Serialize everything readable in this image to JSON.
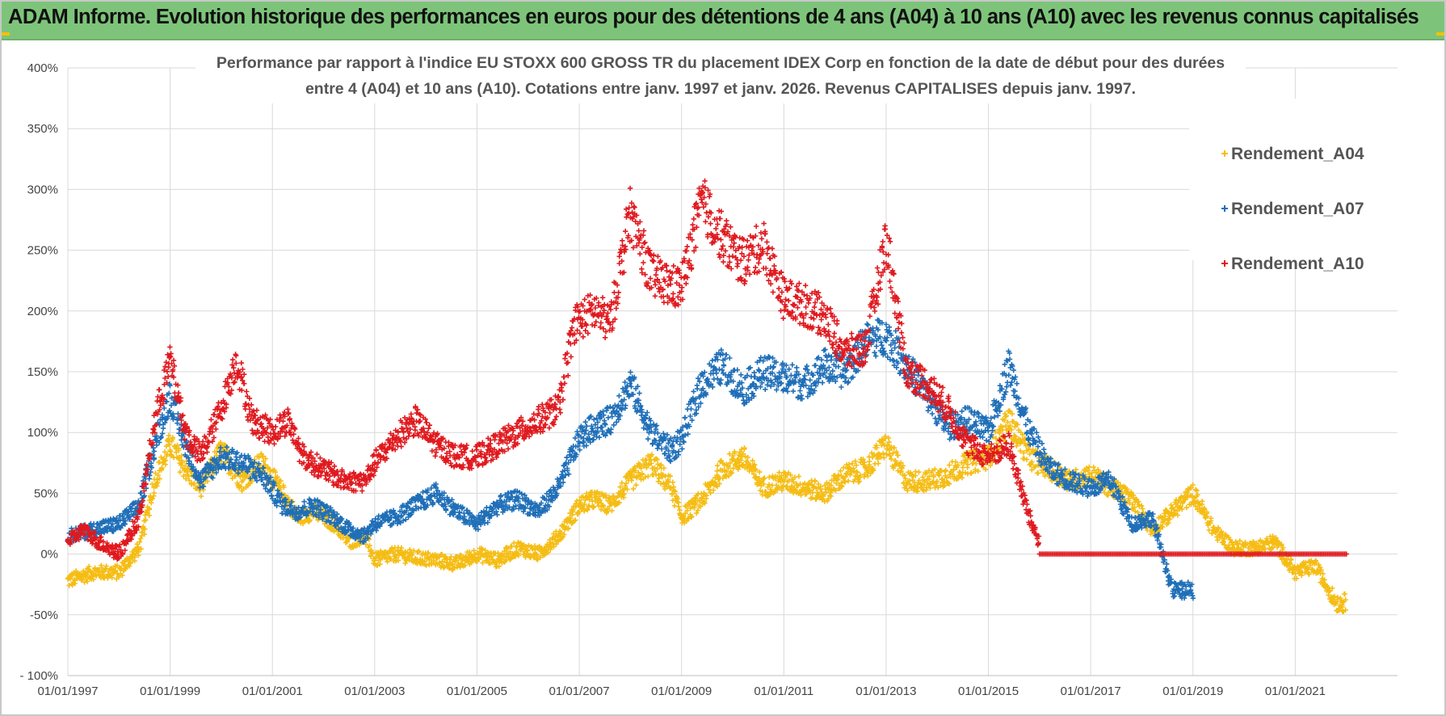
{
  "header": {
    "title": "ADAM Informe. Evolution historique des performances en euros pour des détentions de 4 ans (A04) à 10 ans (A10) avec les revenus connus capitalisés"
  },
  "colors": {
    "banner": "#7dc47a",
    "a04": "#f5bd14",
    "a07": "#1f6fb8",
    "a10": "#e0191e",
    "grid": "#d9d9d9"
  },
  "chart_data": {
    "type": "scatter",
    "title_lines": [
      "Performance par rapport à l'indice EU STOXX 600 GROSS TR  du placement IDEX Corp en fonction de la date de début pour des durées",
      "entre 4 (A04) et 10 ans (A10).  Cotations entre janv. 1997 et janv. 2026. Revenus CAPITALISES depuis janv. 1997."
    ],
    "xlabel": "",
    "ylabel": "",
    "x_range": [
      1997.0,
      2023.0
    ],
    "y_range": [
      -100,
      400
    ],
    "y_ticks": [
      400,
      350,
      300,
      250,
      200,
      150,
      100,
      50,
      0,
      -50,
      -100
    ],
    "y_tick_labels": [
      "400%",
      "350%",
      "300%",
      "250%",
      "200%",
      "150%",
      "100%",
      "50%",
      "0%",
      "-50%",
      "- 100%"
    ],
    "x_ticks": [
      1997,
      1999,
      2001,
      2003,
      2005,
      2007,
      2009,
      2011,
      2013,
      2015,
      2017,
      2019,
      2021
    ],
    "x_tick_labels": [
      "01/01/1997",
      "01/01/1999",
      "01/01/2001",
      "01/01/2003",
      "01/01/2005",
      "01/01/2007",
      "01/01/2009",
      "01/01/2011",
      "01/01/2013",
      "01/01/2015",
      "01/01/2017",
      "01/01/2019",
      "01/01/2021"
    ],
    "grid": true,
    "legend_position": "top-right",
    "marker": "+",
    "series": [
      {
        "name": "Rendement_A04",
        "color": "#f5bd14",
        "x_end": 2022.0,
        "x": [
          1997.0,
          1997.5,
          1998.0,
          1998.4,
          1998.7,
          1999.0,
          1999.3,
          1999.6,
          2000.0,
          2000.4,
          2000.8,
          2001.2,
          2001.5,
          2001.8,
          2002.2,
          2002.5,
          2002.8,
          2003.0,
          2003.4,
          2003.8,
          2004.2,
          2004.6,
          2005.0,
          2005.4,
          2005.8,
          2006.2,
          2006.6,
          2007.0,
          2007.3,
          2007.6,
          2008.0,
          2008.4,
          2008.8,
          2009.0,
          2009.4,
          2009.8,
          2010.2,
          2010.6,
          2011.0,
          2011.4,
          2011.8,
          2012.2,
          2012.6,
          2013.0,
          2013.4,
          2013.8,
          2014.2,
          2014.6,
          2015.0,
          2015.4,
          2015.8,
          2016.2,
          2016.6,
          2017.0,
          2017.4,
          2017.8,
          2018.2,
          2018.6,
          2019.0,
          2019.4,
          2019.8,
          2020.2,
          2020.6,
          2021.0,
          2021.4,
          2021.8,
          2022.0
        ],
        "values": [
          -22,
          -15,
          -15,
          5,
          60,
          90,
          70,
          55,
          85,
          60,
          75,
          50,
          30,
          35,
          25,
          10,
          15,
          -5,
          0,
          -3,
          -5,
          -8,
          0,
          -5,
          5,
          0,
          15,
          40,
          45,
          40,
          60,
          75,
          55,
          30,
          45,
          70,
          80,
          55,
          60,
          55,
          50,
          65,
          70,
          90,
          60,
          60,
          65,
          75,
          80,
          110,
          80,
          70,
          60,
          65,
          55,
          45,
          20,
          35,
          50,
          20,
          5,
          5,
          10,
          -15,
          -10,
          -40,
          -40
        ]
      },
      {
        "name": "Rendement_A07",
        "color": "#1f6fb8",
        "x_end": 2019.0,
        "x": [
          1997.0,
          1997.5,
          1998.0,
          1998.4,
          1998.7,
          1999.0,
          1999.3,
          1999.6,
          2000.0,
          2000.4,
          2000.8,
          2001.2,
          2001.5,
          2001.8,
          2002.2,
          2002.5,
          2002.8,
          2003.0,
          2003.4,
          2003.8,
          2004.2,
          2004.6,
          2005.0,
          2005.4,
          2005.8,
          2006.2,
          2006.6,
          2007.0,
          2007.3,
          2007.6,
          2008.0,
          2008.4,
          2008.8,
          2009.0,
          2009.4,
          2009.8,
          2010.2,
          2010.6,
          2011.0,
          2011.4,
          2011.8,
          2012.2,
          2012.6,
          2013.0,
          2013.4,
          2013.8,
          2014.2,
          2014.6,
          2015.0,
          2015.4,
          2015.8,
          2016.2,
          2016.6,
          2017.0,
          2017.4,
          2017.8,
          2018.2,
          2018.6,
          2019.0
        ],
        "values": [
          15,
          20,
          25,
          40,
          90,
          130,
          90,
          60,
          80,
          75,
          65,
          40,
          35,
          40,
          30,
          20,
          15,
          25,
          30,
          40,
          50,
          35,
          25,
          40,
          45,
          35,
          55,
          95,
          105,
          110,
          140,
          100,
          85,
          95,
          140,
          155,
          135,
          150,
          145,
          140,
          155,
          150,
          175,
          180,
          155,
          130,
          105,
          110,
          100,
          155,
          100,
          70,
          60,
          55,
          60,
          25,
          30,
          -30,
          -30
        ]
      },
      {
        "name": "Rendement_A10",
        "color": "#e0191e",
        "x_end": 2016.0,
        "zero_from": 2016.0,
        "zero_to": 2022.0,
        "x": [
          1997.0,
          1997.3,
          1997.6,
          1998.0,
          1998.4,
          1998.7,
          1999.0,
          1999.3,
          1999.6,
          2000.0,
          2000.3,
          2000.6,
          2001.0,
          2001.3,
          2001.6,
          2002.0,
          2002.4,
          2002.8,
          2003.0,
          2003.4,
          2003.8,
          2004.2,
          2004.6,
          2005.0,
          2005.4,
          2005.8,
          2006.2,
          2006.6,
          2006.9,
          2007.3,
          2007.6,
          2008.0,
          2008.4,
          2008.8,
          2009.0,
          2009.4,
          2009.8,
          2010.2,
          2010.6,
          2011.0,
          2011.4,
          2011.8,
          2012.2,
          2012.6,
          2013.0,
          2013.4,
          2013.8,
          2014.2,
          2014.6,
          2015.0,
          2015.4,
          2015.8,
          2016.0
        ],
        "values": [
          10,
          20,
          10,
          0,
          30,
          110,
          160,
          100,
          80,
          120,
          160,
          110,
          100,
          110,
          80,
          70,
          60,
          60,
          75,
          95,
          110,
          90,
          80,
          80,
          90,
          100,
          110,
          120,
          190,
          200,
          190,
          280,
          230,
          220,
          220,
          290,
          260,
          240,
          255,
          210,
          205,
          195,
          165,
          170,
          260,
          150,
          140,
          120,
          90,
          80,
          90,
          30,
          10
        ]
      }
    ]
  }
}
